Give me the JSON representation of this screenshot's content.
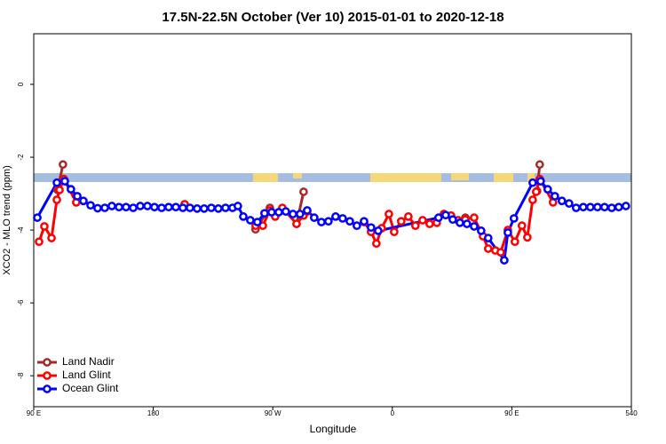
{
  "chart_data": {
    "type": "line",
    "title": "17.5N-22.5N October (Ver 10)   2015-01-01 to 2020-12-18",
    "x_label": "Longitude",
    "y_label": "XCO2 - MLO trend (ppm)",
    "xlim": [
      90,
      540
    ],
    "ylim": [
      -8.85,
      1.39
    ],
    "xticks": [
      {
        "value": 90,
        "label": "90 E"
      },
      180,
      {
        "value": 270,
        "label": "90 W"
      },
      {
        "value": 360,
        "label": "0"
      },
      {
        "value": 450,
        "label": "90 E"
      },
      540
    ],
    "yticks": [
      0,
      -2,
      -4,
      -6,
      -8
    ],
    "legend": "bottom-left",
    "series": [
      {
        "name": "Land Nadir",
        "color": "#a52a2a",
        "x": [
          108,
          112,
          null,
          257,
          267.8,
          null,
          287.9,
          293.2,
          null,
          415,
          null,
          469,
          471
        ],
        "values": [
          -2.9,
          -2.2,
          null,
          -3.98,
          -3.39,
          null,
          -3.83,
          -2.95,
          null,
          -3.66,
          null,
          -2.93,
          -2.2
        ]
      },
      {
        "name": "Land Glint",
        "color": "#ff0000",
        "x": [
          94,
          98,
          103.4,
          107.4,
          109.4,
          112.7,
          122,
          null,
          203.6,
          null,
          257.1,
          262.5,
          267.8,
          271.8,
          277.2,
          287.9,
          293.2,
          295.9,
          null,
          338.7,
          344,
          348,
          352,
          357.4,
          361.4,
          366.7,
          372.1,
          377.4,
          382.8,
          388.1,
          393.5,
          398.8,
          404.2,
          409.5,
          414.9,
          421.6,
          428.3,
          432.2,
          437.6,
          441.6,
          447,
          452.3,
          457.6,
          461.7,
          465.7,
          468.3,
          471,
          481
        ],
        "values": [
          -4.32,
          -3.9,
          -4.22,
          -3.17,
          -2.9,
          -2.6,
          -3.24,
          null,
          -3.29,
          null,
          -3.88,
          -3.88,
          -3.46,
          -3.63,
          -3.39,
          -3.83,
          -3.6,
          -3.49,
          null,
          -3.78,
          -4.05,
          -4.37,
          -3.95,
          -3.56,
          -4.05,
          -3.76,
          -3.63,
          -3.88,
          -3.73,
          -3.83,
          -3.8,
          -3.56,
          -3.6,
          -3.73,
          -3.71,
          -3.66,
          -4.17,
          -4.51,
          -4.56,
          -4.61,
          -4.0,
          -4.32,
          -3.88,
          -4.2,
          -3.17,
          -2.95,
          -2.6,
          -3.24
        ]
      },
      {
        "name": "Ocean Glint",
        "color": "#0000ff",
        "x": [
          92.7,
          107.4,
          113.4,
          118,
          122.8,
          127.4,
          132.8,
          138.1,
          143.5,
          148.8,
          154.2,
          159.5,
          164.9,
          170.2,
          175.6,
          180.9,
          186.3,
          191.6,
          197,
          202.3,
          207.6,
          213,
          218.3,
          223.7,
          229,
          234.4,
          239.7,
          243.7,
          247.8,
          253.1,
          258.4,
          263.8,
          269.1,
          274.5,
          279.8,
          285.2,
          290.5,
          295.9,
          301.2,
          306.6,
          311.9,
          317.3,
          322.6,
          328,
          333.3,
          338.7,
          344,
          349.4,
          394.8,
          400.2,
          405.5,
          410.9,
          416.2,
          421.6,
          426.9,
          432.2,
          444.3,
          447,
          451.6,
          465.7,
          471.7,
          477,
          482.4,
          487.7,
          493.1,
          498.4,
          503.8,
          509.1,
          514.5,
          519.8,
          525.2,
          530.5,
          535.9
        ],
        "values": [
          -3.66,
          -2.7,
          -2.66,
          -2.88,
          -3.07,
          -3.2,
          -3.32,
          -3.4,
          -3.39,
          -3.34,
          -3.37,
          -3.37,
          -3.39,
          -3.34,
          -3.34,
          -3.37,
          -3.39,
          -3.37,
          -3.37,
          -3.39,
          -3.39,
          -3.41,
          -3.41,
          -3.39,
          -3.41,
          -3.39,
          -3.39,
          -3.34,
          -3.63,
          -3.73,
          -3.78,
          -3.54,
          -3.51,
          -3.51,
          -3.49,
          -3.56,
          -3.56,
          -3.46,
          -3.66,
          -3.78,
          -3.76,
          -3.63,
          -3.68,
          -3.76,
          -3.88,
          -3.76,
          -3.93,
          -4.02,
          -3.66,
          -3.59,
          -3.71,
          -3.8,
          -3.83,
          -3.9,
          -4.02,
          -4.22,
          -4.83,
          -4.07,
          -3.68,
          -2.7,
          -2.66,
          -2.88,
          -3.07,
          -3.2,
          -3.27,
          -3.39,
          -3.37,
          -3.37,
          -3.37,
          -3.37,
          -3.39,
          -3.37,
          -3.34
        ]
      }
    ]
  }
}
